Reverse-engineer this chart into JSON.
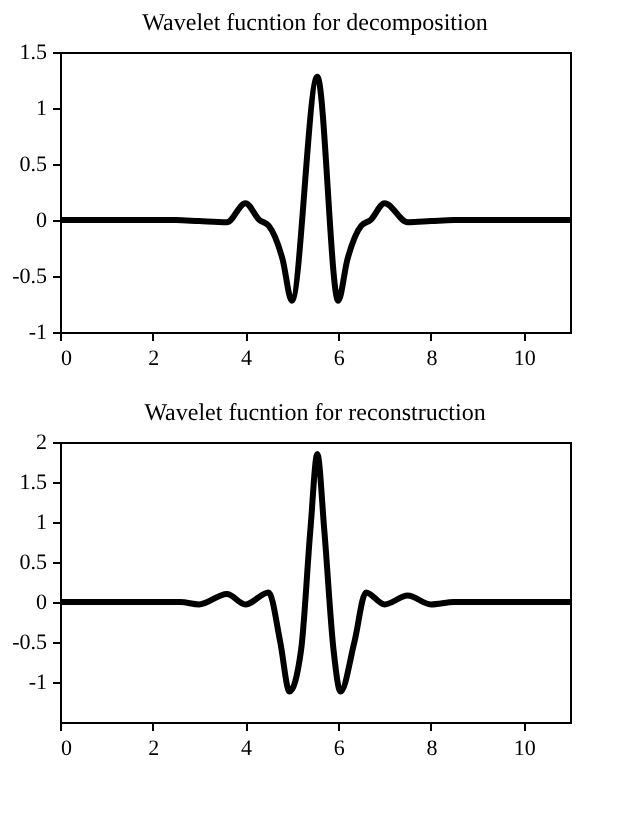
{
  "chart_data": [
    {
      "type": "line",
      "title": "Wavelet fucntion for decomposition",
      "xlim": [
        0,
        11
      ],
      "xticks": [
        0,
        2,
        4,
        6,
        8,
        10
      ],
      "ylim": [
        -1,
        1.5
      ],
      "yticks": [
        -1,
        -0.5,
        0,
        0.5,
        1,
        1.5
      ],
      "grid": false,
      "marker": "none",
      "line_style": "solid",
      "series": [
        {
          "color": "#000000",
          "x": [
            0,
            2.5,
            3,
            3.6,
            4,
            4.3,
            4.5,
            4.8,
            5,
            5.55,
            6,
            6.2,
            6.5,
            6.7,
            7,
            7.5,
            8,
            8.5,
            11
          ],
          "values": [
            0,
            0,
            -0.01,
            -0.02,
            0.15,
            0,
            -0.05,
            -0.35,
            -0.72,
            1.28,
            -0.72,
            -0.35,
            -0.05,
            0,
            0.15,
            -0.02,
            -0.01,
            0,
            0
          ]
        }
      ]
    },
    {
      "type": "line",
      "title": "Wavelet fucntion for reconstruction",
      "xlim": [
        0,
        11
      ],
      "xticks": [
        0,
        2,
        4,
        6,
        8,
        10
      ],
      "ylim": [
        -1.5,
        2
      ],
      "yticks": [
        -1,
        -0.5,
        0,
        0.5,
        1,
        1.5,
        2
      ],
      "grid": false,
      "marker": "none",
      "line_style": "solid",
      "series": [
        {
          "color": "#000000",
          "x": [
            0,
            2.6,
            3,
            3.6,
            4,
            4.5,
            4.75,
            4.95,
            5.2,
            5.4,
            5.55,
            5.7,
            5.9,
            6.05,
            6.35,
            6.6,
            7,
            7.5,
            8,
            8.5,
            11
          ],
          "values": [
            0,
            0,
            -0.03,
            0.1,
            -0.03,
            0.12,
            -0.5,
            -1.12,
            -0.6,
            0.9,
            1.85,
            0.9,
            -0.6,
            -1.12,
            -0.5,
            0.12,
            -0.03,
            0.08,
            -0.03,
            0,
            0
          ]
        }
      ]
    }
  ]
}
